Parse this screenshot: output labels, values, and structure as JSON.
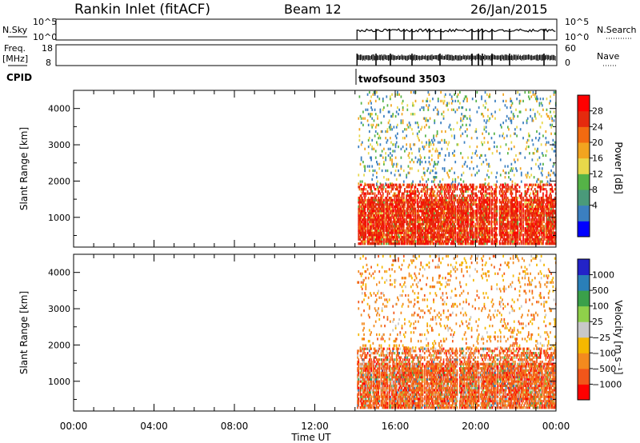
{
  "header": {
    "station": "Rankin Inlet (fitACF)",
    "beam": "Beam 12",
    "date": "26/Jan/2015"
  },
  "aux": {
    "nsky_label": "N.Sky",
    "nsearch_label": "N.Search",
    "log_ticks": [
      "10^5",
      "10^0"
    ],
    "freq_label_1": "Freq.",
    "freq_label_2": "[MHz]",
    "freq_ticks": [
      "18",
      "8"
    ],
    "nave_label": "Nave",
    "nave_ticks": [
      "60",
      "0"
    ],
    "cpid_label": "CPID",
    "cpid_value": "twofsound 3503"
  },
  "chart_data": [
    {
      "type": "heatmap",
      "title": "",
      "xlabel": "",
      "ylabel": "Slant Range [km]",
      "xlim": [
        0,
        24
      ],
      "ylim": [
        180,
        4500
      ],
      "y_ticks": [
        "1000",
        "2000",
        "3000",
        "4000"
      ],
      "colorbar_label": "Power [dB]",
      "colorbar_ticks": [
        "28",
        "24",
        "20",
        "16",
        "12",
        "8",
        "4"
      ],
      "data_start_ut": 14.1,
      "data_end_ut": 24.0
    },
    {
      "type": "heatmap",
      "title": "",
      "xlabel": "Time UT",
      "ylabel": "Slant Range [km]",
      "xlim": [
        0,
        24
      ],
      "ylim": [
        180,
        4500
      ],
      "x_ticks": [
        "00:00",
        "04:00",
        "08:00",
        "12:00",
        "16:00",
        "20:00",
        "00:00"
      ],
      "y_ticks": [
        "1000",
        "2000",
        "3000",
        "4000"
      ],
      "colorbar_label": "Velocity [m s⁻¹]",
      "colorbar_ticks": [
        "1000",
        "500",
        "100",
        "25",
        "−25",
        "−100",
        "−500",
        "−1000"
      ],
      "data_start_ut": 14.1,
      "data_end_ut": 24.0
    }
  ],
  "colors": {
    "power": [
      "#0000ff",
      "#3b7fc0",
      "#4a9a7a",
      "#55b347",
      "#e8d84a",
      "#f2a41f",
      "#f26a10",
      "#e52a0e",
      "#ff0000"
    ],
    "velocity": [
      "#ff0000",
      "#f2561a",
      "#f38a1e",
      "#f5b800",
      "#c8c8c8",
      "#8fd04a",
      "#3aa04a",
      "#2a7fb8",
      "#2323c8"
    ]
  }
}
